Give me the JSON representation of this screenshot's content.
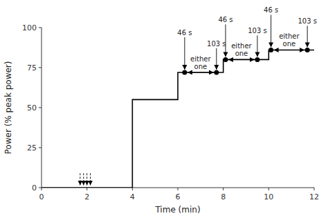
{
  "chart_data": {
    "type": "line",
    "xlabel": "Time (min)",
    "ylabel": "Power (% peak power)",
    "xlim": [
      0,
      12
    ],
    "ylim": [
      0,
      100
    ],
    "xticks": [
      0,
      2,
      4,
      6,
      8,
      10,
      12
    ],
    "yticks": [
      0,
      25,
      50,
      75,
      100
    ],
    "x": [
      0,
      4,
      4,
      6,
      6,
      8,
      8,
      10,
      10,
      12
    ],
    "values": [
      0,
      0,
      55,
      55,
      72,
      72,
      80,
      80,
      86,
      86
    ],
    "color": "#000000",
    "dashed_arrows": {
      "x": [
        1.7,
        1.85,
        2.0,
        2.15
      ],
      "from": 9,
      "to": 1.5,
      "color": "#000000"
    },
    "markers": {
      "x": [
        6.3,
        7.7,
        8.1,
        9.5,
        10.1,
        11.7
      ],
      "values": [
        72,
        72,
        80,
        80,
        86,
        86
      ],
      "color": "#000000"
    },
    "annotations": [
      {
        "label": "46 s",
        "x": 6.3,
        "y": 72
      },
      {
        "label": "46 s",
        "x": 8.1,
        "y": 80
      },
      {
        "label": "46 s",
        "x": 10.1,
        "y": 86
      },
      {
        "label": "103 s",
        "x": 7.7,
        "y": 72
      },
      {
        "label": "103 s",
        "x": 9.5,
        "y": 80
      },
      {
        "label": "103 s",
        "x": 11.7,
        "y": 86
      }
    ],
    "spans": [
      {
        "label": "either\none",
        "x1": 6.3,
        "x2": 7.7,
        "y": 72
      },
      {
        "label": "either\none",
        "x1": 8.1,
        "x2": 9.5,
        "y": 80
      },
      {
        "label": "either\none",
        "x1": 10.1,
        "x2": 11.7,
        "y": 86
      }
    ]
  }
}
